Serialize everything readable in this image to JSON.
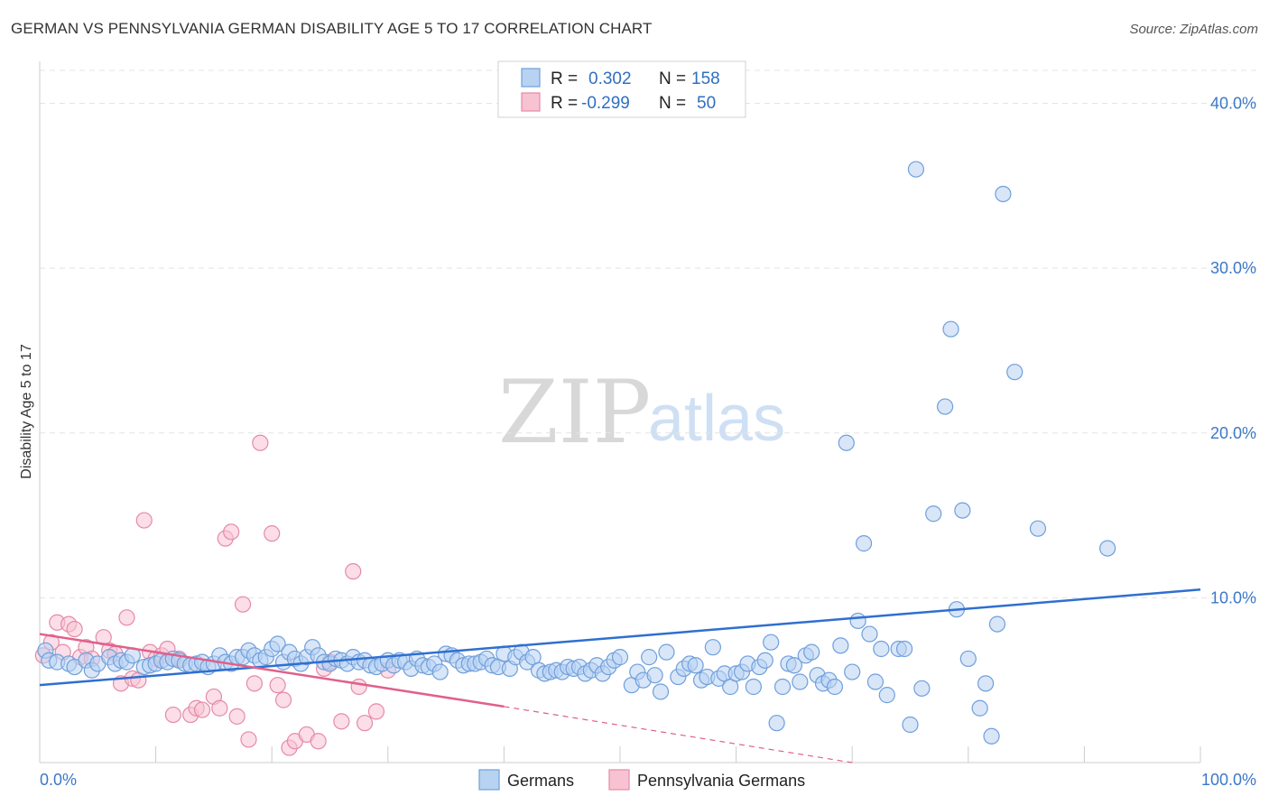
{
  "title": "GERMAN VS PENNSYLVANIA GERMAN DISABILITY AGE 5 TO 17 CORRELATION CHART",
  "source": "Source: ZipAtlas.com",
  "watermark": {
    "part1": "ZIP",
    "part2": "atlas"
  },
  "chart_data": {
    "type": "scatter",
    "title": "GERMAN VS PENNSYLVANIA GERMAN DISABILITY AGE 5 TO 17 CORRELATION CHART",
    "xlabel": "",
    "ylabel": "Disability Age 5 to 17",
    "xlim": [
      0,
      100
    ],
    "ylim": [
      0,
      42
    ],
    "x_tick_labels": [
      "0.0%",
      "100.0%"
    ],
    "y_ticks": [
      10,
      20,
      30,
      40
    ],
    "y_tick_labels": [
      "10.0%",
      "20.0%",
      "30.0%",
      "40.0%"
    ],
    "grid": true,
    "legend": {
      "position": "top-center",
      "entries": [
        {
          "r_label": "R =",
          "r_value": "0.302",
          "n_label": "N =",
          "n_value": "158"
        },
        {
          "r_label": "R =",
          "r_value": "-0.299",
          "n_label": "N =",
          "n_value": "50"
        }
      ]
    },
    "series": [
      {
        "name": "Germans",
        "color": "#6f9fdc",
        "fill": "#b8d2f2",
        "trend": {
          "x": [
            0,
            100
          ],
          "y": [
            4.7,
            10.5
          ]
        },
        "points": [
          [
            0.5,
            6.8
          ],
          [
            0.8,
            6.2
          ],
          [
            1.5,
            6.1
          ],
          [
            2.5,
            6.0
          ],
          [
            3,
            5.8
          ],
          [
            4,
            6.2
          ],
          [
            4.5,
            5.6
          ],
          [
            5,
            6.0
          ],
          [
            6,
            6.4
          ],
          [
            6.5,
            6.0
          ],
          [
            7,
            6.2
          ],
          [
            7.5,
            6.1
          ],
          [
            8,
            6.5
          ],
          [
            9,
            5.8
          ],
          [
            9.5,
            5.9
          ],
          [
            10,
            6.0
          ],
          [
            10.5,
            6.2
          ],
          [
            11,
            6.1
          ],
          [
            11.5,
            6.3
          ],
          [
            12,
            6.2
          ],
          [
            12.5,
            6.0
          ],
          [
            13,
            5.9
          ],
          [
            13.5,
            6.0
          ],
          [
            14,
            6.1
          ],
          [
            14.5,
            5.8
          ],
          [
            15,
            6.0
          ],
          [
            15.5,
            6.5
          ],
          [
            16,
            6.1
          ],
          [
            16.5,
            6.0
          ],
          [
            17,
            6.4
          ],
          [
            17.5,
            6.4
          ],
          [
            18,
            6.8
          ],
          [
            18.5,
            6.5
          ],
          [
            19,
            6.2
          ],
          [
            19.5,
            6.4
          ],
          [
            20,
            6.9
          ],
          [
            20.5,
            7.2
          ],
          [
            21,
            6.1
          ],
          [
            21.5,
            6.7
          ],
          [
            22,
            6.3
          ],
          [
            22.5,
            6.0
          ],
          [
            23,
            6.4
          ],
          [
            23.5,
            7.0
          ],
          [
            24,
            6.5
          ],
          [
            24.5,
            6.1
          ],
          [
            25,
            6.0
          ],
          [
            25.5,
            6.3
          ],
          [
            26,
            6.2
          ],
          [
            26.5,
            6.0
          ],
          [
            27,
            6.4
          ],
          [
            27.5,
            6.1
          ],
          [
            28,
            6.2
          ],
          [
            28.5,
            5.9
          ],
          [
            29,
            5.8
          ],
          [
            29.5,
            6.0
          ],
          [
            30,
            6.2
          ],
          [
            30.5,
            5.9
          ],
          [
            31,
            6.2
          ],
          [
            31.5,
            6.1
          ],
          [
            32,
            5.7
          ],
          [
            32.5,
            6.3
          ],
          [
            33,
            5.9
          ],
          [
            33.5,
            5.8
          ],
          [
            34,
            6.0
          ],
          [
            34.5,
            5.5
          ],
          [
            35,
            6.6
          ],
          [
            35.5,
            6.5
          ],
          [
            36,
            6.2
          ],
          [
            36.5,
            5.9
          ],
          [
            37,
            6.0
          ],
          [
            37.5,
            6.0
          ],
          [
            38,
            6.1
          ],
          [
            38.5,
            6.3
          ],
          [
            39,
            5.9
          ],
          [
            39.5,
            5.8
          ],
          [
            40,
            6.6
          ],
          [
            40.5,
            5.7
          ],
          [
            41,
            6.4
          ],
          [
            41.5,
            6.7
          ],
          [
            42,
            6.1
          ],
          [
            42.5,
            6.4
          ],
          [
            43,
            5.6
          ],
          [
            43.5,
            5.4
          ],
          [
            44,
            5.5
          ],
          [
            44.5,
            5.6
          ],
          [
            45,
            5.5
          ],
          [
            45.5,
            5.8
          ],
          [
            46,
            5.7
          ],
          [
            46.5,
            5.8
          ],
          [
            47,
            5.4
          ],
          [
            47.5,
            5.6
          ],
          [
            48,
            5.9
          ],
          [
            48.5,
            5.4
          ],
          [
            49,
            5.8
          ],
          [
            49.5,
            6.2
          ],
          [
            50,
            6.4
          ],
          [
            51,
            4.7
          ],
          [
            51.5,
            5.5
          ],
          [
            52,
            5.0
          ],
          [
            52.5,
            6.4
          ],
          [
            53,
            5.3
          ],
          [
            53.5,
            4.3
          ],
          [
            54,
            6.7
          ],
          [
            55,
            5.2
          ],
          [
            55.5,
            5.7
          ],
          [
            56,
            6.0
          ],
          [
            56.5,
            5.9
          ],
          [
            57,
            5.0
          ],
          [
            57.5,
            5.2
          ],
          [
            58,
            7.0
          ],
          [
            58.5,
            5.1
          ],
          [
            59,
            5.4
          ],
          [
            59.5,
            4.6
          ],
          [
            60,
            5.4
          ],
          [
            60.5,
            5.5
          ],
          [
            61,
            6.0
          ],
          [
            61.5,
            4.6
          ],
          [
            62,
            5.8
          ],
          [
            62.5,
            6.2
          ],
          [
            63,
            7.3
          ],
          [
            63.5,
            2.4
          ],
          [
            64,
            4.6
          ],
          [
            64.5,
            6.0
          ],
          [
            65,
            5.9
          ],
          [
            65.5,
            4.9
          ],
          [
            66,
            6.5
          ],
          [
            66.5,
            6.7
          ],
          [
            67,
            5.3
          ],
          [
            67.5,
            4.8
          ],
          [
            68,
            5.0
          ],
          [
            68.5,
            4.6
          ],
          [
            69,
            7.1
          ],
          [
            69.5,
            19.4
          ],
          [
            70,
            5.5
          ],
          [
            70.5,
            8.6
          ],
          [
            71,
            13.3
          ],
          [
            71.5,
            7.8
          ],
          [
            72,
            4.9
          ],
          [
            72.5,
            6.9
          ],
          [
            73,
            4.1
          ],
          [
            74,
            6.9
          ],
          [
            74.5,
            6.9
          ],
          [
            75,
            2.3
          ],
          [
            75.5,
            36.0
          ],
          [
            76,
            4.5
          ],
          [
            77,
            15.1
          ],
          [
            78,
            21.6
          ],
          [
            78.5,
            26.3
          ],
          [
            79,
            9.3
          ],
          [
            79.5,
            15.3
          ],
          [
            80,
            6.3
          ],
          [
            81,
            3.3
          ],
          [
            81.5,
            4.8
          ],
          [
            82,
            1.6
          ],
          [
            82.5,
            8.4
          ],
          [
            83,
            34.5
          ],
          [
            84,
            23.7
          ],
          [
            86,
            14.2
          ],
          [
            92,
            13.0
          ]
        ]
      },
      {
        "name": "Pennsylvania Germans",
        "color": "#e58aa8",
        "fill": "#f7c3d3",
        "trend": {
          "x": [
            0,
            40
          ],
          "y": [
            7.8,
            3.4
          ]
        },
        "trend_dashed": {
          "x": [
            40,
            70
          ],
          "y": [
            3.4,
            0.0
          ]
        },
        "points": [
          [
            0.3,
            6.5
          ],
          [
            1,
            7.3
          ],
          [
            1.5,
            8.5
          ],
          [
            2,
            6.7
          ],
          [
            2.5,
            8.4
          ],
          [
            3,
            8.1
          ],
          [
            3.5,
            6.4
          ],
          [
            4,
            7.0
          ],
          [
            4.5,
            6.3
          ],
          [
            5.5,
            7.6
          ],
          [
            6,
            6.8
          ],
          [
            6.5,
            6.6
          ],
          [
            7,
            4.8
          ],
          [
            7.5,
            8.8
          ],
          [
            8,
            5.1
          ],
          [
            8.5,
            5.0
          ],
          [
            9,
            14.7
          ],
          [
            9.5,
            6.7
          ],
          [
            10,
            6.3
          ],
          [
            10.5,
            6.5
          ],
          [
            11,
            6.9
          ],
          [
            11.5,
            2.9
          ],
          [
            12,
            6.3
          ],
          [
            13,
            2.9
          ],
          [
            13.5,
            3.3
          ],
          [
            14,
            3.2
          ],
          [
            15,
            4.0
          ],
          [
            15.5,
            3.3
          ],
          [
            16,
            13.6
          ],
          [
            16.5,
            14.0
          ],
          [
            17,
            2.8
          ],
          [
            17.5,
            9.6
          ],
          [
            18,
            1.4
          ],
          [
            18.5,
            4.8
          ],
          [
            19,
            19.4
          ],
          [
            20,
            13.9
          ],
          [
            20.5,
            4.7
          ],
          [
            21,
            3.8
          ],
          [
            21.5,
            0.9
          ],
          [
            22,
            1.3
          ],
          [
            23,
            1.7
          ],
          [
            24,
            1.3
          ],
          [
            24.5,
            5.7
          ],
          [
            25,
            6.1
          ],
          [
            26,
            2.5
          ],
          [
            27,
            11.6
          ],
          [
            27.5,
            4.6
          ],
          [
            28,
            2.4
          ],
          [
            29,
            3.1
          ],
          [
            30,
            5.6
          ]
        ]
      }
    ]
  },
  "bottom_legend": [
    {
      "label": "Germans"
    },
    {
      "label": "Pennsylvania Germans"
    }
  ]
}
